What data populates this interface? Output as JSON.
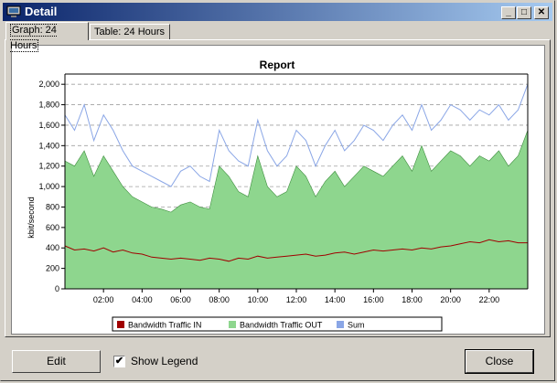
{
  "window": {
    "title": "Detail"
  },
  "tabs": [
    {
      "label": "Graph: 24 Hours",
      "active": true
    },
    {
      "label": "Table: 24 Hours",
      "active": false
    }
  ],
  "chart_data": {
    "type": "area",
    "title": "Report",
    "ylabel": "kbit/second",
    "xlabel": "",
    "ylim": [
      0,
      2100
    ],
    "y_ticks": [
      "0",
      "200",
      "400",
      "600",
      "800",
      "1,000",
      "1,200",
      "1,400",
      "1,600",
      "1,800",
      "2,000"
    ],
    "x_ticks": [
      "02:00",
      "04:00",
      "06:00",
      "08:00",
      "10:00",
      "12:00",
      "14:00",
      "16:00",
      "18:00",
      "20:00",
      "22:00"
    ],
    "x_hours": [
      0,
      0.5,
      1,
      1.5,
      2,
      2.5,
      3,
      3.5,
      4,
      4.5,
      5,
      5.5,
      6,
      6.5,
      7,
      7.5,
      8,
      8.5,
      9,
      9.5,
      10,
      10.5,
      11,
      11.5,
      12,
      12.5,
      13,
      13.5,
      14,
      14.5,
      15,
      15.5,
      16,
      16.5,
      17,
      17.5,
      18,
      18.5,
      19,
      19.5,
      20,
      20.5,
      21,
      21.5,
      22,
      22.5,
      23,
      23.5,
      24
    ],
    "grid": true,
    "legend": "bottom",
    "series": [
      {
        "name": "Bandwidth Traffic IN",
        "color": "#a00000",
        "values": [
          420,
          380,
          390,
          370,
          400,
          360,
          380,
          350,
          340,
          310,
          300,
          290,
          300,
          290,
          280,
          300,
          290,
          270,
          300,
          290,
          320,
          300,
          310,
          320,
          330,
          340,
          320,
          330,
          350,
          360,
          340,
          360,
          380,
          370,
          380,
          390,
          380,
          400,
          390,
          410,
          420,
          440,
          460,
          450,
          480,
          460,
          470,
          450,
          450
        ]
      },
      {
        "name": "Bandwidth Traffic OUT",
        "color": "#8ed68e",
        "values": [
          1250,
          1200,
          1350,
          1100,
          1300,
          1150,
          1000,
          900,
          850,
          800,
          780,
          750,
          820,
          850,
          800,
          780,
          1200,
          1100,
          950,
          900,
          1300,
          1000,
          900,
          950,
          1200,
          1100,
          900,
          1050,
          1150,
          1000,
          1100,
          1200,
          1150,
          1100,
          1200,
          1300,
          1150,
          1400,
          1150,
          1250,
          1350,
          1300,
          1200,
          1300,
          1250,
          1350,
          1200,
          1300,
          1550
        ]
      },
      {
        "name": "Sum",
        "color": "#8aa6e6",
        "values": [
          1700,
          1550,
          1800,
          1450,
          1700,
          1550,
          1350,
          1200,
          1150,
          1100,
          1050,
          1000,
          1150,
          1200,
          1100,
          1050,
          1550,
          1350,
          1250,
          1200,
          1650,
          1350,
          1200,
          1300,
          1550,
          1450,
          1200,
          1400,
          1550,
          1350,
          1450,
          1600,
          1550,
          1450,
          1600,
          1700,
          1550,
          1800,
          1550,
          1650,
          1800,
          1750,
          1650,
          1750,
          1700,
          1800,
          1650,
          1750,
          2000
        ]
      }
    ]
  },
  "controls": {
    "edit_label": "Edit",
    "show_legend_label": "Show Legend",
    "show_legend_checked": "✔",
    "close_label": "Close"
  },
  "titlebar_buttons": {
    "minimize": "_",
    "maximize": "□",
    "close": "✕"
  }
}
